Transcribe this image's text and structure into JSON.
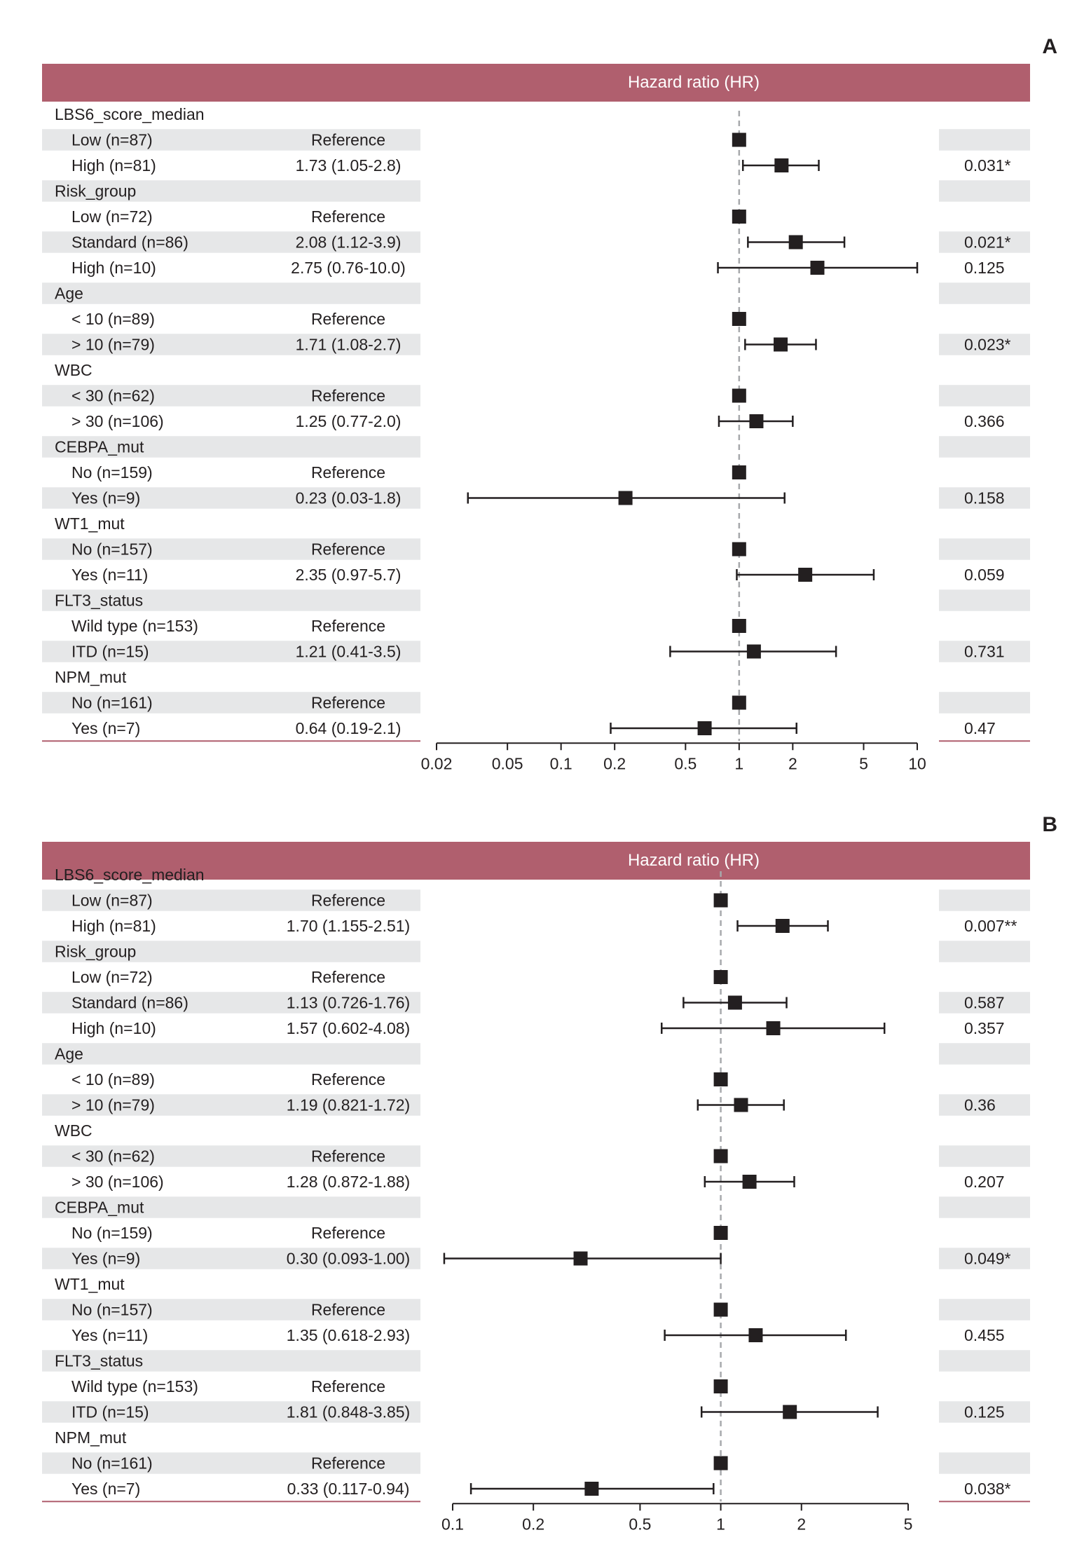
{
  "panels": [
    {
      "letter": "A",
      "header_title": "Hazard ratio (HR)",
      "rows": [
        {
          "label": "LBS6_score_median",
          "hr_text": "",
          "p": "",
          "group": true
        },
        {
          "label": "Low (n=87)",
          "hr_text": "Reference",
          "p": "",
          "hr": 1
        },
        {
          "label": "High (n=81)",
          "hr_text": "1.73 (1.05-2.8)",
          "p": "0.031*",
          "hr": 1.73,
          "lo": 1.05,
          "hi": 2.8
        },
        {
          "label": "Risk_group",
          "hr_text": "",
          "p": "",
          "group": true
        },
        {
          "label": "Low (n=72)",
          "hr_text": "Reference",
          "p": "",
          "hr": 1
        },
        {
          "label": "Standard (n=86)",
          "hr_text": "2.08 (1.12-3.9)",
          "p": "0.021*",
          "hr": 2.08,
          "lo": 1.12,
          "hi": 3.9
        },
        {
          "label": "High (n=10)",
          "hr_text": "2.75 (0.76-10.0)",
          "p": "0.125",
          "hr": 2.75,
          "lo": 0.76,
          "hi": 10.0
        },
        {
          "label": "Age",
          "hr_text": "",
          "p": "",
          "group": true
        },
        {
          "label": "< 10 (n=89)",
          "hr_text": "Reference",
          "p": "",
          "hr": 1
        },
        {
          "label": "> 10 (n=79)",
          "hr_text": "1.71 (1.08-2.7)",
          "p": "0.023*",
          "hr": 1.71,
          "lo": 1.08,
          "hi": 2.7
        },
        {
          "label": "WBC",
          "hr_text": "",
          "p": "",
          "group": true
        },
        {
          "label": "< 30 (n=62)",
          "hr_text": "Reference",
          "p": "",
          "hr": 1
        },
        {
          "label": "> 30 (n=106)",
          "hr_text": "1.25 (0.77-2.0)",
          "p": "0.366",
          "hr": 1.25,
          "lo": 0.77,
          "hi": 2.0
        },
        {
          "label": "CEBPA_mut",
          "hr_text": "",
          "p": "",
          "group": true
        },
        {
          "label": "No (n=159)",
          "hr_text": "Reference",
          "p": "",
          "hr": 1
        },
        {
          "label": "Yes (n=9)",
          "hr_text": "0.23 (0.03-1.8)",
          "p": "0.158",
          "hr": 0.23,
          "lo": 0.03,
          "hi": 1.8
        },
        {
          "label": "WT1_mut",
          "hr_text": "",
          "p": "",
          "group": true
        },
        {
          "label": "No (n=157)",
          "hr_text": "Reference",
          "p": "",
          "hr": 1
        },
        {
          "label": "Yes (n=11)",
          "hr_text": "2.35 (0.97-5.7)",
          "p": "0.059",
          "hr": 2.35,
          "lo": 0.97,
          "hi": 5.7
        },
        {
          "label": "FLT3_status",
          "hr_text": "",
          "p": "",
          "group": true
        },
        {
          "label": "Wild type (n=153)",
          "hr_text": "Reference",
          "p": "",
          "hr": 1
        },
        {
          "label": "ITD (n=15)",
          "hr_text": "1.21 (0.41-3.5)",
          "p": "0.731",
          "hr": 1.21,
          "lo": 0.41,
          "hi": 3.5
        },
        {
          "label": "NPM_mut",
          "hr_text": "",
          "p": "",
          "group": true
        },
        {
          "label": "No (n=161)",
          "hr_text": "Reference",
          "p": "",
          "hr": 1
        },
        {
          "label": "Yes (n=7)",
          "hr_text": "0.64 (0.19-2.1)",
          "p": "0.47",
          "hr": 0.64,
          "lo": 0.19,
          "hi": 2.1
        }
      ],
      "x_ticks": [
        0.02,
        0.05,
        0.1,
        0.2,
        0.5,
        1,
        2,
        5,
        10
      ],
      "x_tick_labels": [
        "0.02",
        "0.05",
        "0.1",
        "0.2",
        "0.5",
        "1",
        "2",
        "5",
        "10"
      ]
    },
    {
      "letter": "B",
      "header_title": "Hazard ratio (HR)",
      "rows": [
        {
          "label": "LBS6_score_median",
          "hr_text": "",
          "p": "",
          "group": true
        },
        {
          "label": "Low (n=87)",
          "hr_text": "Reference",
          "p": "",
          "hr": 1
        },
        {
          "label": "High (n=81)",
          "hr_text": "1.70 (1.155-2.51)",
          "p": "0.007**",
          "hr": 1.7,
          "lo": 1.155,
          "hi": 2.51
        },
        {
          "label": "Risk_group",
          "hr_text": "",
          "p": "",
          "group": true
        },
        {
          "label": "Low (n=72)",
          "hr_text": "Reference",
          "p": "",
          "hr": 1
        },
        {
          "label": "Standard (n=86)",
          "hr_text": "1.13 (0.726-1.76)",
          "p": "0.587",
          "hr": 1.13,
          "lo": 0.726,
          "hi": 1.76
        },
        {
          "label": "High (n=10)",
          "hr_text": "1.57 (0.602-4.08)",
          "p": "0.357",
          "hr": 1.57,
          "lo": 0.602,
          "hi": 4.08
        },
        {
          "label": "Age",
          "hr_text": "",
          "p": "",
          "group": true
        },
        {
          "label": "< 10 (n=89)",
          "hr_text": "Reference",
          "p": "",
          "hr": 1
        },
        {
          "label": "> 10 (n=79)",
          "hr_text": "1.19 (0.821-1.72)",
          "p": "0.36",
          "hr": 1.19,
          "lo": 0.821,
          "hi": 1.72
        },
        {
          "label": "WBC",
          "hr_text": "",
          "p": "",
          "group": true
        },
        {
          "label": "< 30 (n=62)",
          "hr_text": "Reference",
          "p": "",
          "hr": 1
        },
        {
          "label": "> 30 (n=106)",
          "hr_text": "1.28 (0.872-1.88)",
          "p": "0.207",
          "hr": 1.28,
          "lo": 0.872,
          "hi": 1.88
        },
        {
          "label": "CEBPA_mut",
          "hr_text": "",
          "p": "",
          "group": true
        },
        {
          "label": "No (n=159)",
          "hr_text": "Reference",
          "p": "",
          "hr": 1
        },
        {
          "label": "Yes (n=9)",
          "hr_text": "0.30 (0.093-1.00)",
          "p": "0.049*",
          "hr": 0.3,
          "lo": 0.093,
          "hi": 1.0
        },
        {
          "label": "WT1_mut",
          "hr_text": "",
          "p": "",
          "group": true
        },
        {
          "label": "No (n=157)",
          "hr_text": "Reference",
          "p": "",
          "hr": 1
        },
        {
          "label": "Yes (n=11)",
          "hr_text": "1.35 (0.618-2.93)",
          "p": "0.455",
          "hr": 1.35,
          "lo": 0.618,
          "hi": 2.93
        },
        {
          "label": "FLT3_status",
          "hr_text": "",
          "p": "",
          "group": true
        },
        {
          "label": "Wild type (n=153)",
          "hr_text": "Reference",
          "p": "",
          "hr": 1
        },
        {
          "label": "ITD (n=15)",
          "hr_text": "1.81 (0.848-3.85)",
          "p": "0.125",
          "hr": 1.81,
          "lo": 0.848,
          "hi": 3.85
        },
        {
          "label": "NPM_mut",
          "hr_text": "",
          "p": "",
          "group": true
        },
        {
          "label": "No (n=161)",
          "hr_text": "Reference",
          "p": "",
          "hr": 1
        },
        {
          "label": "Yes (n=7)",
          "hr_text": "0.33 (0.117-0.94)",
          "p": "0.038*",
          "hr": 0.33,
          "lo": 0.117,
          "hi": 0.94
        }
      ],
      "x_ticks": [
        0.1,
        0.2,
        0.5,
        1,
        2,
        5
      ],
      "x_tick_labels": [
        "0.1",
        "0.2",
        "0.5",
        "1",
        "2",
        "5"
      ]
    }
  ],
  "colors": {
    "header": "#b05f6e",
    "band": "#e6e7e8",
    "text": "#231f20",
    "marker": "#231f20",
    "reference_line": "#a7a9ac",
    "bottom_rule": "#b05f6e"
  },
  "chart_data": [
    {
      "type": "forest",
      "scale": "log",
      "xlim": [
        0.02,
        10
      ],
      "reference": 1,
      "categories": [
        "Low (n=87)",
        "High (n=81)",
        "Low (n=72)",
        "Standard (n=86)",
        "High (n=10)",
        "< 10 (n=89)",
        "> 10 (n=79)",
        "< 30 (n=62)",
        "> 30 (n=106)",
        "No (n=159)",
        "Yes (n=9)",
        "No (n=157)",
        "Yes (n=11)",
        "Wild type (n=153)",
        "ITD (n=15)",
        "No (n=161)",
        "Yes (n=7)"
      ],
      "hr": [
        1,
        1.73,
        1,
        2.08,
        2.75,
        1,
        1.71,
        1,
        1.25,
        1,
        0.23,
        1,
        2.35,
        1,
        1.21,
        1,
        0.64
      ],
      "ci_lower": [
        null,
        1.05,
        null,
        1.12,
        0.76,
        null,
        1.08,
        null,
        0.77,
        null,
        0.03,
        null,
        0.97,
        null,
        0.41,
        null,
        0.19
      ],
      "ci_upper": [
        null,
        2.8,
        null,
        3.9,
        10.0,
        null,
        2.7,
        null,
        2.0,
        null,
        1.8,
        null,
        5.7,
        null,
        3.5,
        null,
        2.1
      ],
      "p_values": [
        "",
        "0.031*",
        "",
        "0.021*",
        "0.125",
        "",
        "0.023*",
        "",
        "0.366",
        "",
        "0.158",
        "",
        "0.059",
        "",
        "0.731",
        "",
        "0.47"
      ]
    },
    {
      "type": "forest",
      "scale": "log",
      "xlim": [
        0.1,
        5
      ],
      "reference": 1,
      "categories": [
        "Low (n=87)",
        "High (n=81)",
        "Low (n=72)",
        "Standard (n=86)",
        "High (n=10)",
        "< 10 (n=89)",
        "> 10 (n=79)",
        "< 30 (n=62)",
        "> 30 (n=106)",
        "No (n=159)",
        "Yes (n=9)",
        "No (n=157)",
        "Yes (n=11)",
        "Wild type (n=153)",
        "ITD (n=15)",
        "No (n=161)",
        "Yes (n=7)"
      ],
      "hr": [
        1,
        1.7,
        1,
        1.13,
        1.57,
        1,
        1.19,
        1,
        1.28,
        1,
        0.3,
        1,
        1.35,
        1,
        1.81,
        1,
        0.33
      ],
      "ci_lower": [
        null,
        1.155,
        null,
        0.726,
        0.602,
        null,
        0.821,
        null,
        0.872,
        null,
        0.093,
        null,
        0.618,
        null,
        0.848,
        null,
        0.117
      ],
      "ci_upper": [
        null,
        2.51,
        null,
        1.76,
        4.08,
        null,
        1.72,
        null,
        1.88,
        null,
        1.0,
        null,
        2.93,
        null,
        3.85,
        null,
        0.94
      ],
      "p_values": [
        "",
        "0.007**",
        "",
        "0.587",
        "0.357",
        "",
        "0.36",
        "",
        "0.207",
        "",
        "0.049*",
        "",
        "0.455",
        "",
        "0.125",
        "",
        "0.038*"
      ]
    }
  ]
}
